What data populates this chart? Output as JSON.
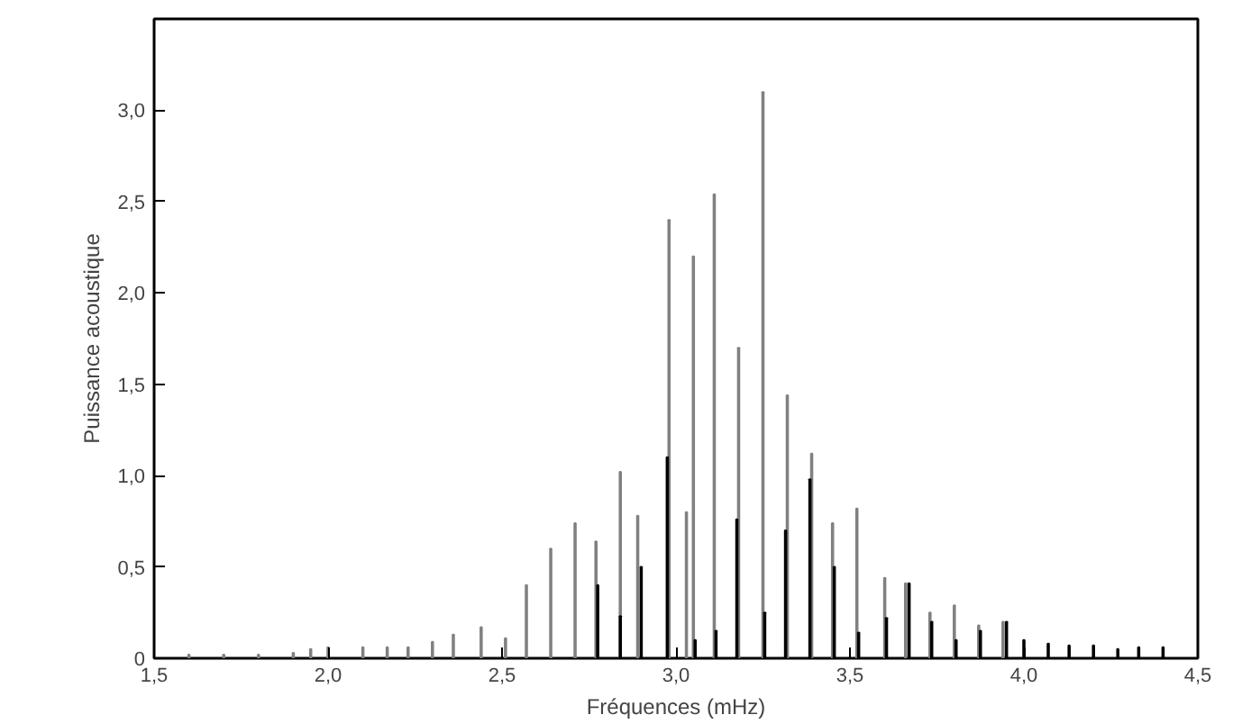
{
  "chart_data": {
    "type": "bar",
    "xlabel": "Fréquences (mHz)",
    "ylabel": "Puissance acoustique",
    "xlim": [
      1.5,
      4.5
    ],
    "ylim": [
      0,
      3.5
    ],
    "xticks": [
      {
        "value": 1.5,
        "label": "1,5"
      },
      {
        "value": 2.0,
        "label": "2,0"
      },
      {
        "value": 2.5,
        "label": "2,5"
      },
      {
        "value": 3.0,
        "label": "3,0"
      },
      {
        "value": 3.5,
        "label": "3,5"
      },
      {
        "value": 4.0,
        "label": "4,0"
      },
      {
        "value": 4.5,
        "label": "4,5"
      }
    ],
    "yticks": [
      0,
      {
        "value": 0.5,
        "label": "0,5"
      },
      {
        "value": 1.0,
        "label": "1,0"
      },
      {
        "value": 1.5,
        "label": "1,5"
      },
      {
        "value": 2.0,
        "label": "2,0"
      },
      {
        "value": 2.5,
        "label": "2,5"
      },
      {
        "value": 3.0,
        "label": "3,0"
      }
    ],
    "grid": false,
    "series": [
      {
        "color": "#808080",
        "x": [
          1.6,
          1.7,
          1.8,
          1.9,
          1.95,
          2.0,
          2.1,
          2.17,
          2.23,
          2.3,
          2.36,
          2.44,
          2.51,
          2.57,
          2.64,
          2.71,
          2.77,
          2.84,
          2.89,
          2.98,
          3.03,
          3.05,
          3.11,
          3.18,
          3.25,
          3.32,
          3.39,
          3.45,
          3.52,
          3.6,
          3.66,
          3.73,
          3.8,
          3.87,
          3.94
        ],
        "values": [
          0.02,
          0.02,
          0.02,
          0.03,
          0.05,
          0.06,
          0.06,
          0.06,
          0.06,
          0.09,
          0.13,
          0.17,
          0.11,
          0.4,
          0.6,
          0.74,
          0.64,
          1.02,
          0.78,
          2.4,
          0.8,
          2.2,
          2.54,
          1.7,
          3.1,
          1.44,
          1.12,
          0.74,
          0.82,
          0.44,
          0.41,
          0.25,
          0.29,
          0.18,
          0.2
        ]
      },
      {
        "color": "#000000",
        "x": [
          2.775,
          2.84,
          2.9,
          2.975,
          3.055,
          3.115,
          3.175,
          3.255,
          3.315,
          3.385,
          3.455,
          3.525,
          3.605,
          3.67,
          3.735,
          3.805,
          3.875,
          3.95,
          4.0,
          4.07,
          4.13,
          4.2,
          4.27,
          4.33,
          4.4
        ],
        "values": [
          0.4,
          0.23,
          0.5,
          1.1,
          0.1,
          0.15,
          0.76,
          0.25,
          0.7,
          0.98,
          0.5,
          0.14,
          0.22,
          0.41,
          0.2,
          0.1,
          0.15,
          0.2,
          0.1,
          0.08,
          0.07,
          0.07,
          0.05,
          0.06,
          0.06
        ]
      }
    ]
  }
}
